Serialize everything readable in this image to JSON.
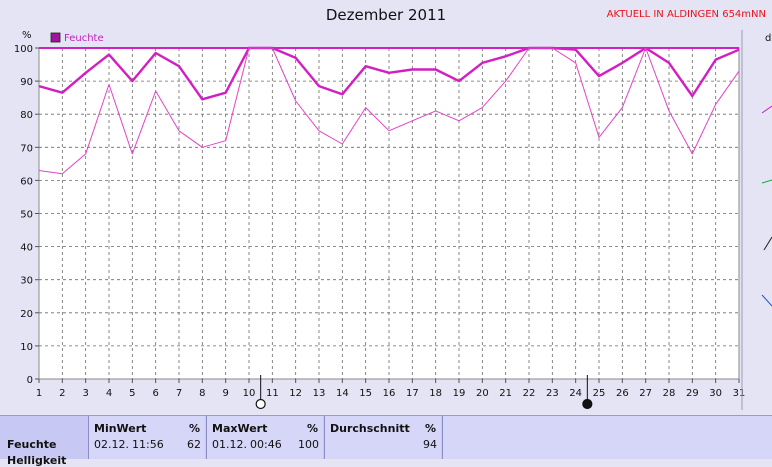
{
  "title": "Dezember 2011",
  "status": "AKTUELL IN ALDINGEN 654mNN",
  "right_edge_letter": "d",
  "chart_data": {
    "type": "line",
    "title": "Dezember 2011",
    "ylabel": "%",
    "ylim": [
      0,
      100
    ],
    "yticks": [
      0,
      10,
      20,
      30,
      40,
      50,
      60,
      70,
      80,
      90,
      100
    ],
    "x": [
      1,
      2,
      3,
      4,
      5,
      6,
      7,
      8,
      9,
      10,
      11,
      12,
      13,
      14,
      15,
      16,
      17,
      18,
      19,
      20,
      21,
      22,
      23,
      24,
      25,
      26,
      27,
      28,
      29,
      30,
      31
    ],
    "legend": "Feuchte",
    "legend_position": "top-left",
    "grid": true,
    "series": [
      {
        "name": "Feuchte",
        "role": "max",
        "color": "#d21fc2",
        "values": [
          100,
          100,
          100,
          100,
          100,
          100,
          100,
          100,
          100,
          100,
          100,
          100,
          100,
          100,
          100,
          100,
          100,
          100,
          100,
          100,
          100,
          100,
          100,
          100,
          100,
          100,
          100,
          100,
          100,
          100,
          100
        ]
      },
      {
        "name": "Feuchte",
        "role": "mean",
        "color": "#d21fc2",
        "values": [
          88.5,
          86.5,
          92.5,
          98,
          90,
          98.5,
          94.5,
          84.5,
          86.5,
          100,
          100,
          97,
          88.5,
          86,
          94.5,
          92.5,
          93.5,
          93.5,
          90,
          95.5,
          97.5,
          100,
          100,
          99.5,
          91.5,
          95.5,
          100,
          95.5,
          85.5,
          96.5,
          99.5
        ]
      },
      {
        "name": "Feuchte",
        "role": "min",
        "color": "#e044c8",
        "values": [
          63,
          62,
          68,
          89,
          68,
          87,
          75,
          70,
          72,
          100,
          100,
          84,
          75,
          71,
          82,
          75,
          78,
          81,
          78,
          82,
          90,
          100,
          100,
          95.5,
          73,
          82,
          100,
          81,
          68,
          83,
          93
        ]
      }
    ],
    "moon_symbols": [
      {
        "day": 10.5,
        "symbol": "○"
      },
      {
        "day": 24.5,
        "symbol": "●"
      }
    ]
  },
  "stats": {
    "row_label": "Feuchte",
    "row_label_2": "Helligkeit",
    "min": {
      "header": "MinWert",
      "unit": "%",
      "date": "02.12.",
      "time": "11:56",
      "value": "62"
    },
    "max": {
      "header": "MaxWert",
      "unit": "%",
      "date": "01.12.",
      "time": "00:46",
      "value": "100"
    },
    "avg": {
      "header": "Durchschnitt",
      "unit": "%",
      "value": "94"
    }
  }
}
